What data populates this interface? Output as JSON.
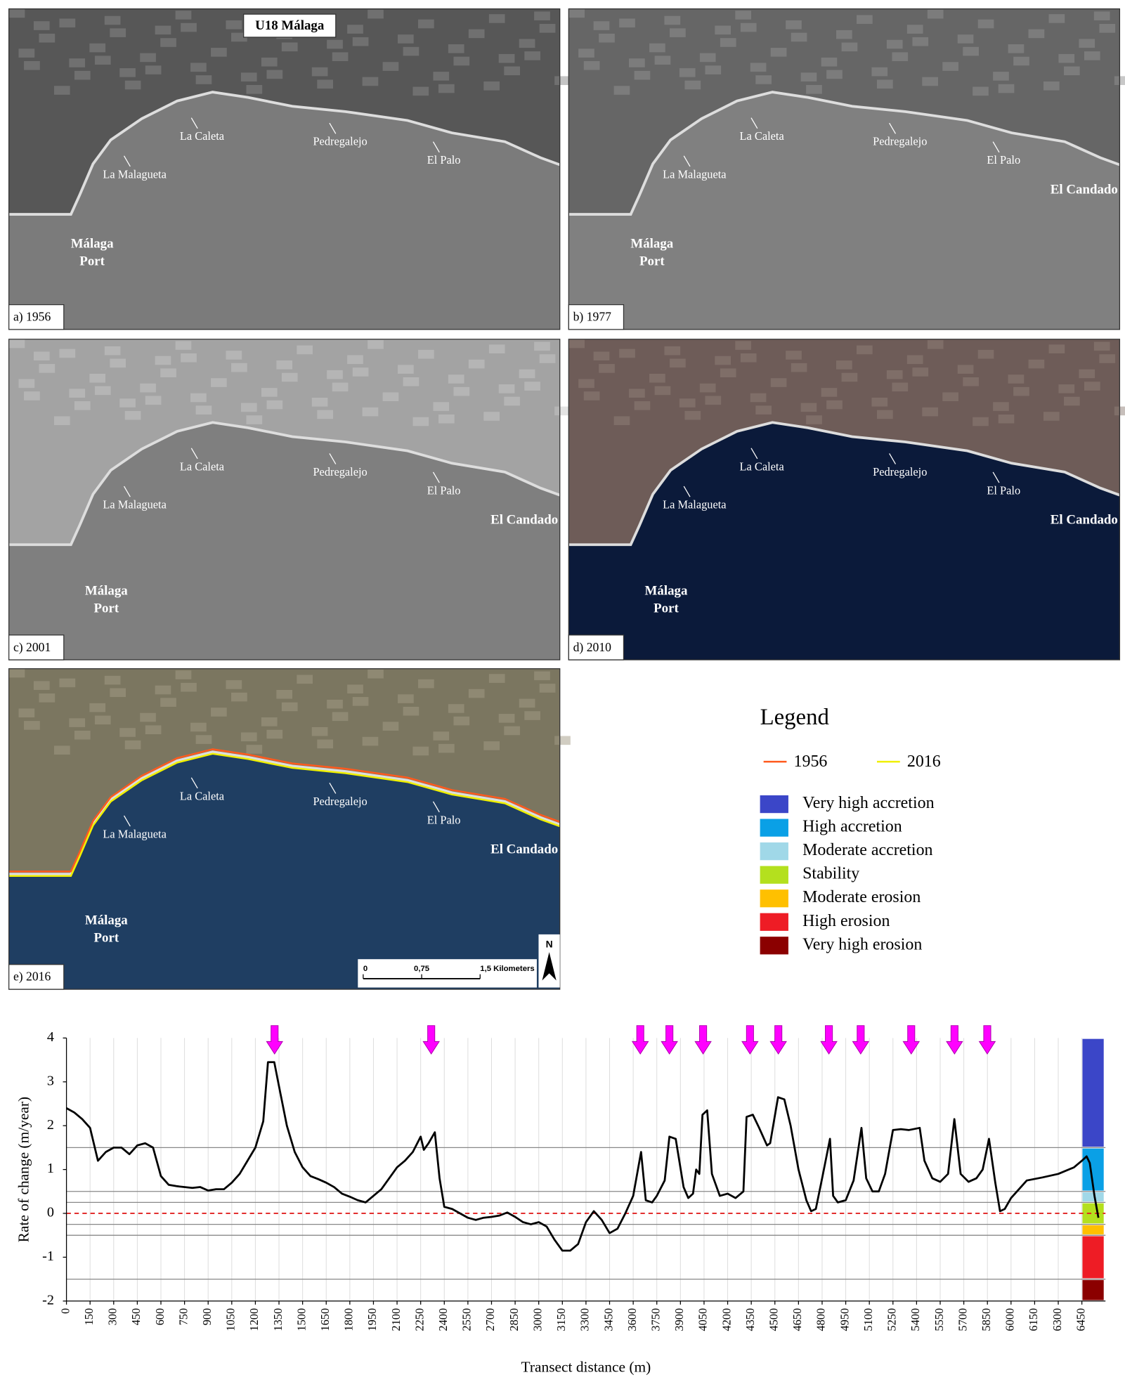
{
  "maps_title": "U18 Málaga",
  "maps": [
    {
      "label": "a) 1956",
      "places": [
        "La Caleta",
        "Pedregalejo",
        "El Palo",
        "La Malagueta",
        "Málaga",
        "Port"
      ]
    },
    {
      "label": "b) 1977",
      "places": [
        "La Caleta",
        "Pedregalejo",
        "El Palo",
        "La Malagueta",
        "Málaga",
        "Port",
        "El Candado"
      ]
    },
    {
      "label": "c) 2001",
      "places": [
        "La Caleta",
        "Pedregalejo",
        "El Palo",
        "La Malagueta",
        "Málaga",
        "Port",
        "El Candado"
      ]
    },
    {
      "label": "d) 2010",
      "places": [
        "La Caleta",
        "Pedregalejo",
        "El Palo",
        "La Malagueta",
        "Málaga",
        "Port",
        "El Candado"
      ]
    },
    {
      "label": "e) 2016",
      "places": [
        "La Caleta",
        "Pedregalejo",
        "El Palo",
        "La Malagueta",
        "Málaga",
        "Port",
        "El Candado"
      ]
    }
  ],
  "scale_bar": [
    "0",
    "0,75",
    "1,5 Kilometers"
  ],
  "north": "N",
  "legend": {
    "title": "Legend",
    "lines": [
      {
        "name": "1956",
        "color": "#ff5a1e"
      },
      {
        "name": "2016",
        "color": "#f0f000"
      }
    ]
  },
  "chart_data": {
    "type": "line",
    "xlabel": "Transect distance (m)",
    "ylabel": "Rate of change (m/year)",
    "xlim": [
      0,
      6600
    ],
    "ylim": [
      -2,
      4
    ],
    "xticks": [
      0,
      150,
      300,
      450,
      600,
      750,
      900,
      1050,
      1200,
      1350,
      1500,
      1650,
      1800,
      1950,
      2100,
      2250,
      2400,
      2550,
      2700,
      2850,
      3000,
      3150,
      3300,
      3450,
      3600,
      3750,
      3900,
      4050,
      4200,
      4350,
      4500,
      4650,
      4800,
      4950,
      5100,
      5250,
      5400,
      5550,
      5700,
      5850,
      6000,
      6150,
      6300,
      6450
    ],
    "yticks": [
      -2,
      -1,
      0,
      1,
      2,
      3,
      4
    ],
    "grid": true,
    "series": [
      {
        "color": "#000000",
        "x": [
          0,
          50,
          100,
          150,
          200,
          250,
          300,
          350,
          400,
          450,
          500,
          550,
          600,
          650,
          700,
          800,
          850,
          900,
          950,
          1000,
          1050,
          1100,
          1150,
          1200,
          1250,
          1280,
          1320,
          1350,
          1400,
          1450,
          1500,
          1550,
          1600,
          1650,
          1700,
          1750,
          1800,
          1850,
          1900,
          1950,
          2000,
          2050,
          2100,
          2150,
          2200,
          2250,
          2270,
          2300,
          2340,
          2370,
          2400,
          2450,
          2500,
          2550,
          2600,
          2650,
          2700,
          2750,
          2800,
          2850,
          2900,
          2950,
          3000,
          3050,
          3100,
          3150,
          3200,
          3250,
          3300,
          3350,
          3400,
          3450,
          3500,
          3550,
          3600,
          3650,
          3680,
          3720,
          3750,
          3800,
          3830,
          3870,
          3920,
          3950,
          3980,
          4000,
          4020,
          4040,
          4070,
          4100,
          4150,
          4200,
          4250,
          4300,
          4320,
          4360,
          4400,
          4450,
          4470,
          4520,
          4560,
          4600,
          4650,
          4700,
          4730,
          4760,
          4800,
          4850,
          4870,
          4900,
          4950,
          5000,
          5050,
          5080,
          5120,
          5160,
          5200,
          5250,
          5300,
          5350,
          5420,
          5450,
          5500,
          5550,
          5600,
          5640,
          5680,
          5730,
          5780,
          5820,
          5860,
          5900,
          5930,
          5960,
          6000,
          6050,
          6100,
          6200,
          6300,
          6400,
          6450,
          6480,
          6500,
          6530,
          6555
        ],
        "values": [
          2.4,
          2.3,
          2.15,
          1.95,
          1.2,
          1.4,
          1.5,
          1.5,
          1.35,
          1.55,
          1.6,
          1.5,
          0.85,
          0.65,
          0.62,
          0.58,
          0.6,
          0.52,
          0.55,
          0.55,
          0.7,
          0.9,
          1.2,
          1.5,
          2.1,
          3.45,
          3.45,
          2.9,
          2.0,
          1.4,
          1.05,
          0.85,
          0.78,
          0.7,
          0.6,
          0.45,
          0.38,
          0.3,
          0.25,
          0.4,
          0.55,
          0.8,
          1.05,
          1.2,
          1.4,
          1.75,
          1.45,
          1.6,
          1.85,
          0.8,
          0.15,
          0.1,
          0.0,
          -0.1,
          -0.15,
          -0.1,
          -0.08,
          -0.05,
          0.02,
          -0.08,
          -0.2,
          -0.25,
          -0.2,
          -0.3,
          -0.6,
          -0.85,
          -0.85,
          -0.7,
          -0.2,
          0.05,
          -0.15,
          -0.45,
          -0.35,
          0.0,
          0.4,
          1.4,
          0.3,
          0.25,
          0.4,
          0.75,
          1.75,
          1.7,
          0.6,
          0.35,
          0.45,
          1.0,
          0.9,
          2.25,
          2.35,
          0.9,
          0.4,
          0.45,
          0.35,
          0.5,
          2.2,
          2.25,
          1.95,
          1.55,
          1.6,
          2.65,
          2.6,
          2.0,
          1.0,
          0.3,
          0.05,
          0.1,
          0.8,
          1.7,
          0.4,
          0.25,
          0.3,
          0.75,
          1.95,
          0.8,
          0.5,
          0.5,
          0.9,
          1.9,
          1.92,
          1.9,
          1.95,
          1.2,
          0.8,
          0.72,
          0.9,
          2.15,
          0.9,
          0.72,
          0.8,
          1.0,
          1.7,
          0.7,
          0.05,
          0.1,
          0.35,
          0.55,
          0.75,
          0.82,
          0.9,
          1.05,
          1.2,
          1.3,
          1.15,
          0.4,
          -0.1
        ]
      }
    ],
    "reference_line": {
      "value": 0,
      "color": "#e02020"
    },
    "arrows": {
      "color": "#ff00ff",
      "x": [
        1322,
        2317,
        3645,
        3830,
        4044,
        4342,
        4522,
        4843,
        5045,
        5366,
        5641,
        5849
      ]
    },
    "classes": [
      {
        "name": "Very high accretion",
        "color": "#3b46c8",
        "range": [
          1.5,
          4
        ]
      },
      {
        "name": "High accretion",
        "color": "#0aa0e6",
        "range": [
          0.5,
          1.5
        ]
      },
      {
        "name": "Moderate accretion",
        "color": "#a0d8e8",
        "range": [
          0.25,
          0.5
        ]
      },
      {
        "name": "Stability",
        "color": "#b4e01e",
        "range": [
          -0.25,
          0.25
        ]
      },
      {
        "name": "Moderate erosion",
        "color": "#ffc000",
        "range": [
          -0.5,
          -0.25
        ]
      },
      {
        "name": "High erosion",
        "color": "#ee1c25",
        "range": [
          -1.5,
          -0.5
        ]
      },
      {
        "name": "Very high erosion",
        "color": "#8b0000",
        "range": [
          -2,
          -1.5
        ]
      }
    ]
  }
}
